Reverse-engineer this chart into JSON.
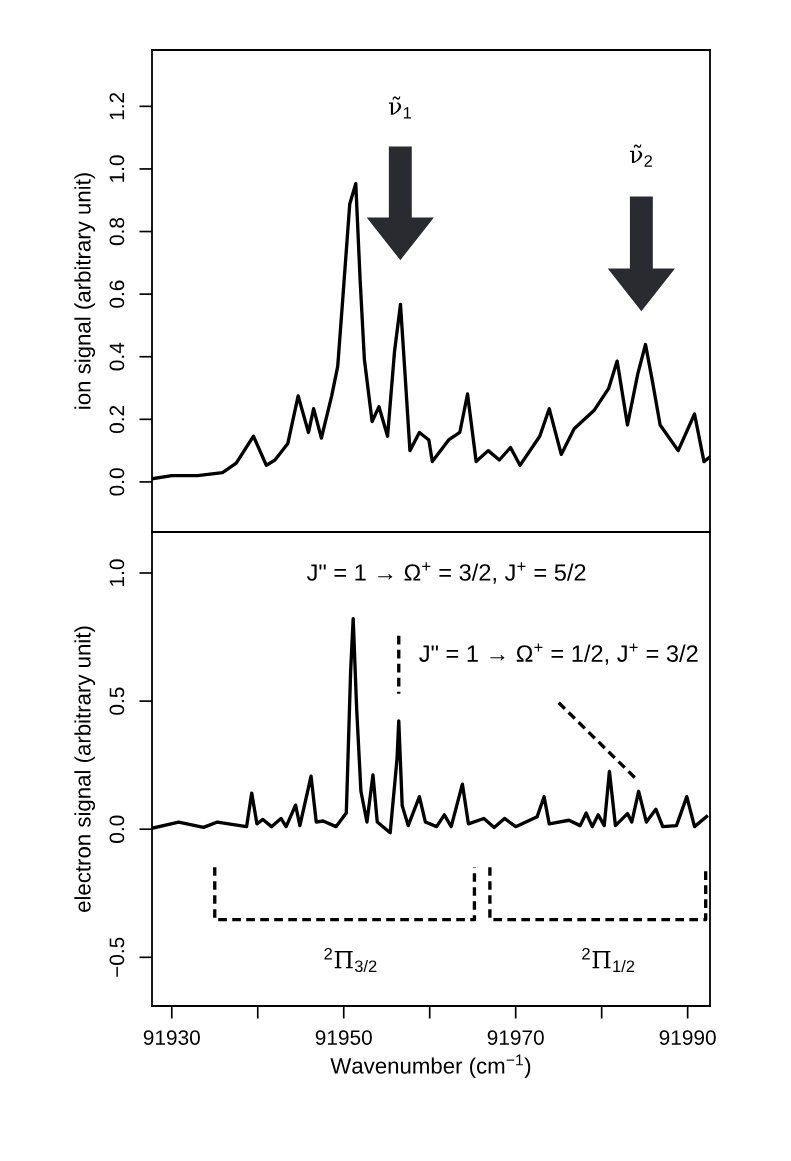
{
  "chart_data": [
    {
      "type": "line",
      "ylabel": "ion signal (arbitrary unit)",
      "xlim": [
        91927.7,
        91992.6
      ],
      "ylim": [
        -0.16,
        1.38
      ],
      "yticks": [
        {
          "value": 0,
          "label": "0.0"
        },
        {
          "value": 0.2,
          "label": "0.2"
        },
        {
          "value": 0.4,
          "label": "0.4"
        },
        {
          "value": 0.6,
          "label": "0.6"
        },
        {
          "value": 0.8,
          "label": "0.8"
        },
        {
          "value": 1.0,
          "label": "1.0"
        },
        {
          "value": 1.2,
          "label": "1.2"
        }
      ],
      "tick_labels": "y",
      "grid": false,
      "legend": false,
      "marker": "none",
      "series": [
        {
          "color": "#000000",
          "line_style": "solid",
          "x": [
            91927.7,
            91930.0,
            91933.0,
            91935.9,
            91937.5,
            91939.5,
            91941.0,
            91942.0,
            91943.5,
            91944.7,
            91945.9,
            91946.5,
            91947.4,
            91948.6,
            91949.3,
            91949.9,
            91950.7,
            91951.4,
            91951.9,
            91952.4,
            91953.3,
            91954.1,
            91955.1,
            91955.9,
            91956.6,
            91957.1,
            91957.7,
            91958.8,
            91959.9,
            91960.3,
            91962.2,
            91963.5,
            91964.4,
            91965.4,
            91966.8,
            91968.1,
            91969.4,
            91970.5,
            91972.8,
            91973.9,
            91975.3,
            91976.8,
            91979.1,
            91980.8,
            91981.8,
            91983.0,
            91984.2,
            91985.1,
            91985.9,
            91986.8,
            91988.9,
            91990.8,
            91991.9,
            91992.6
          ],
          "values": [
            0.01,
            0.02,
            0.02,
            0.03,
            0.06,
            0.146,
            0.053,
            0.07,
            0.123,
            0.275,
            0.158,
            0.234,
            0.14,
            0.275,
            0.369,
            0.59,
            0.888,
            0.953,
            0.649,
            0.392,
            0.193,
            0.24,
            0.146,
            0.415,
            0.567,
            0.357,
            0.1,
            0.158,
            0.134,
            0.065,
            0.134,
            0.158,
            0.281,
            0.065,
            0.1,
            0.07,
            0.11,
            0.053,
            0.146,
            0.234,
            0.088,
            0.17,
            0.228,
            0.298,
            0.386,
            0.182,
            0.345,
            0.439,
            0.322,
            0.182,
            0.1,
            0.217,
            0.065,
            0.08
          ]
        }
      ],
      "annotations": [
        "ν̃$_{1}$",
        "ν̃$_{2}$"
      ]
    },
    {
      "type": "line",
      "xlabel": "Wavenumber (cm$^{−1}$)",
      "ylabel": "electron signal (arbitrary unit)",
      "xlim": [
        91927.7,
        91992.6
      ],
      "ylim": [
        -0.69,
        1.16
      ],
      "xticks": [
        91930,
        {
          "value": 91940,
          "label": null
        },
        91950,
        {
          "value": 91960,
          "label": null
        },
        91970,
        {
          "value": 91980,
          "label": null
        },
        91990
      ],
      "yticks": [
        {
          "value": -0.5,
          "label": "−0.5"
        },
        {
          "value": 0,
          "label": "0.0"
        },
        {
          "value": 0.5,
          "label": "0.5"
        },
        {
          "value": 1.0,
          "label": "1.0"
        }
      ],
      "grid": false,
      "legend": false,
      "marker": "none",
      "series": [
        {
          "color": "#000000",
          "line_style": "solid",
          "x": [
            91927.7,
            91930.8,
            91933.7,
            91935.3,
            91938.7,
            91939.3,
            91939.9,
            91940.6,
            91941.6,
            91942.7,
            91943.3,
            91944.4,
            91944.9,
            91946.2,
            91946.8,
            91947.6,
            91949.1,
            91950.3,
            91950.8,
            91951.1,
            91951.5,
            91952.0,
            91952.7,
            91953.4,
            91953.9,
            91955.4,
            91956.2,
            91956.4,
            91956.8,
            91957.5,
            91958.8,
            91959.5,
            91960.8,
            91961.7,
            91962.5,
            91963.8,
            91964.5,
            91966.3,
            91967.5,
            91968.7,
            91970.0,
            91972.5,
            91973.3,
            91973.9,
            91976.2,
            91977.5,
            91978.2,
            91978.9,
            91979.6,
            91980.3,
            91980.9,
            91981.6,
            91983.0,
            91983.5,
            91984.3,
            91985.2,
            91986.3,
            91987.1,
            91988.7,
            91989.9,
            91990.8,
            91992.2
          ],
          "values": [
            0.004,
            0.028,
            0.007,
            0.028,
            0.01,
            0.141,
            0.021,
            0.038,
            0.01,
            0.042,
            0.01,
            0.094,
            0.014,
            0.207,
            0.028,
            0.032,
            0.01,
            0.063,
            0.614,
            0.822,
            0.472,
            0.148,
            0.028,
            0.212,
            0.028,
            -0.014,
            0.275,
            0.423,
            0.092,
            0.014,
            0.127,
            0.028,
            0.01,
            0.056,
            0.01,
            0.176,
            0.021,
            0.042,
            0.007,
            0.042,
            0.01,
            0.049,
            0.127,
            0.021,
            0.035,
            0.014,
            0.063,
            0.01,
            0.056,
            0.014,
            0.226,
            0.014,
            0.061,
            0.028,
            0.148,
            0.028,
            0.078,
            0.01,
            0.014,
            0.127,
            0.01,
            0.049
          ]
        },
        {
          "color": "#000000",
          "line_style": "dashed",
          "x": [
            91956.4,
            91956.4
          ],
          "values": [
            0.755,
            0.529
          ]
        },
        {
          "color": "#000000",
          "line_style": "dashed",
          "x": [
            91975.0,
            91984.2
          ],
          "values": [
            0.494,
            0.19
          ]
        },
        {
          "color": "#000000",
          "line_style": "dashed",
          "x": [
            91935.0,
            91935.0,
            91965.2,
            91965.2
          ],
          "values": [
            -0.148,
            -0.353,
            -0.353,
            -0.148
          ]
        },
        {
          "color": "#000000",
          "line_style": "dashed",
          "x": [
            91967.0,
            91967.0,
            91992.1,
            91992.1
          ],
          "values": [
            -0.148,
            -0.353,
            -0.353,
            -0.148
          ]
        }
      ],
      "annotations": [
        "J\" = 1 → Ω$^{+}$ = 3/2, J$^{+}$ = 5/2",
        "J\" = 1 → Ω$^{+}$ = 1/2, J$^{+}$ = 3/2",
        "$^{2}$Π$_{3/2}$",
        "$^{2}$Π$_{1/2}$"
      ]
    }
  ]
}
